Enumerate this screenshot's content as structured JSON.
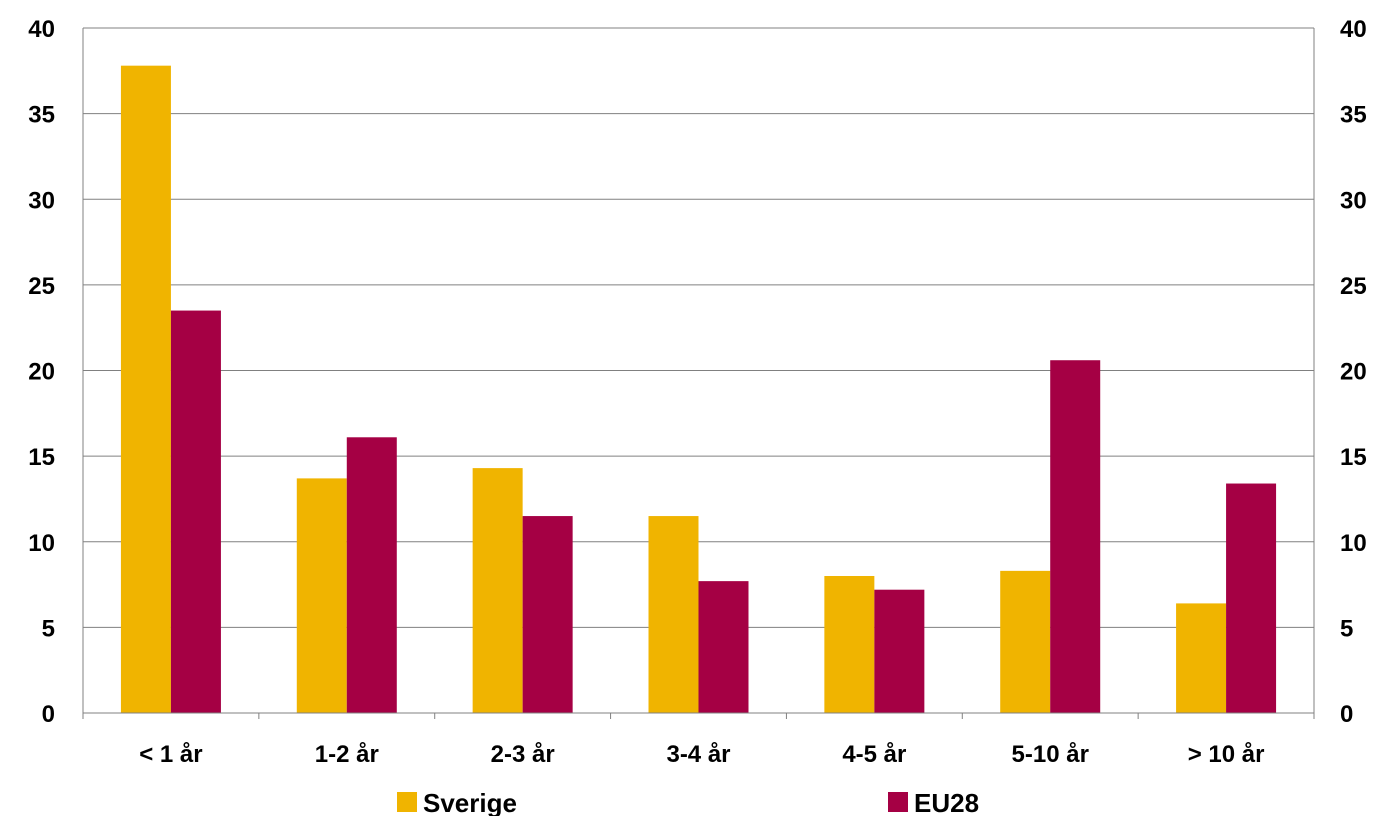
{
  "chart_data": {
    "type": "bar",
    "categories": [
      "< 1 år",
      "1-2 år",
      "2-3 år",
      "3-4 år",
      "4-5 år",
      "5-10 år",
      "> 10 år"
    ],
    "series": [
      {
        "name": "Sverige",
        "color": "#F0B400",
        "values": [
          37.8,
          13.7,
          14.3,
          11.5,
          8.0,
          8.3,
          6.4
        ]
      },
      {
        "name": "EU28",
        "color": "#A50044",
        "values": [
          23.5,
          16.1,
          11.5,
          7.7,
          7.2,
          20.6,
          13.4
        ]
      }
    ],
    "ylim": [
      0,
      40
    ],
    "y_ticks": [
      "0",
      "5",
      "10",
      "15",
      "20",
      "25",
      "30",
      "35",
      "40"
    ],
    "secondary_y_ticks": [
      "0",
      "5",
      "10",
      "15",
      "20",
      "25",
      "30",
      "35",
      "40"
    ],
    "grid": true,
    "legend_position": "bottom",
    "grid_color": "#808080"
  }
}
